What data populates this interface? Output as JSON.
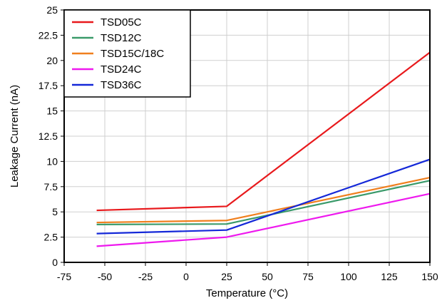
{
  "chart_data": {
    "type": "line",
    "title": "",
    "xlabel": "Temperature (°C)",
    "ylabel": "Leakage Current (nA)",
    "xlim": [
      -75,
      150
    ],
    "ylim": [
      0,
      25
    ],
    "x_ticks": [
      "-75",
      "-50",
      "-25",
      "0",
      "25",
      "50",
      "75",
      "100",
      "125",
      "150"
    ],
    "y_ticks": [
      "0",
      "2.5",
      "5",
      "7.5",
      "10",
      "12.5",
      "15",
      "17.5",
      "20",
      "22.5",
      "25"
    ],
    "grid": true,
    "legend_position": "top-left",
    "series": [
      {
        "name": "TSD05C",
        "color": "#e8191c",
        "x": [
          -55,
          25,
          150
        ],
        "y": [
          5.15,
          5.55,
          20.8
        ]
      },
      {
        "name": "TSD12C",
        "color": "#3a9a6a",
        "x": [
          -55,
          25,
          150
        ],
        "y": [
          3.75,
          3.8,
          8.1
        ]
      },
      {
        "name": "TSD15C/18C",
        "color": "#f07f1e",
        "x": [
          -55,
          25,
          150
        ],
        "y": [
          3.95,
          4.15,
          8.4
        ]
      },
      {
        "name": "TSD24C",
        "color": "#ee19ee",
        "x": [
          -55,
          25,
          150
        ],
        "y": [
          1.6,
          2.5,
          6.8
        ]
      },
      {
        "name": "TSD36C",
        "color": "#1428d8",
        "x": [
          -55,
          25,
          150
        ],
        "y": [
          2.85,
          3.2,
          10.2
        ]
      }
    ]
  }
}
